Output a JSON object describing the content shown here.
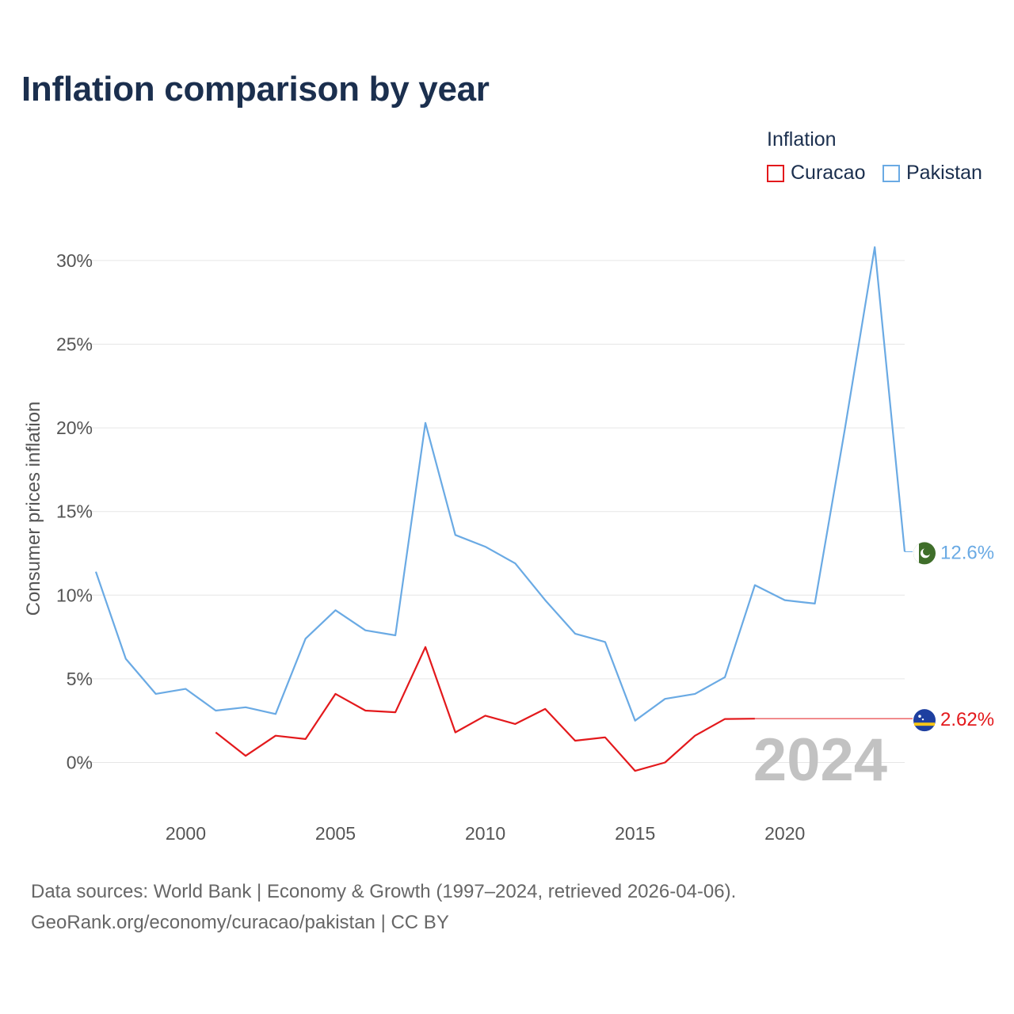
{
  "title": "Inflation comparison by year",
  "legend": {
    "title": "Inflation",
    "items": [
      {
        "label": "Curacao",
        "color": "#e3191c"
      },
      {
        "label": "Pakistan",
        "color": "#6aaae4"
      }
    ]
  },
  "source": {
    "line1": "Data sources: World Bank | Economy & Growth (1997–2024, retrieved 2026-04-06).",
    "line2": "GeoRank.org/economy/curacao/pakistan | CC BY"
  },
  "chart_data": {
    "type": "line",
    "title": "Inflation comparison by year",
    "xlabel": "",
    "ylabel": "Consumer prices inflation",
    "xlim": [
      1997,
      2024
    ],
    "ylim": [
      -2.5,
      31
    ],
    "yticks": [
      0,
      5,
      10,
      15,
      20,
      25,
      30
    ],
    "ytick_labels": [
      "0%",
      "5%",
      "10%",
      "15%",
      "20%",
      "25%",
      "30%"
    ],
    "xticks": [
      2000,
      2005,
      2010,
      2015,
      2020
    ],
    "xtick_labels": [
      "2000",
      "2005",
      "2010",
      "2015",
      "2020"
    ],
    "year_label": "2024",
    "series": [
      {
        "name": "Curacao",
        "color": "#e3191c",
        "end_label": "2.62%",
        "end_value": 2.62,
        "flag_icon": "curacao-flag-icon",
        "points": [
          [
            2001,
            1.8
          ],
          [
            2002,
            0.4
          ],
          [
            2003,
            1.6
          ],
          [
            2004,
            1.4
          ],
          [
            2005,
            4.1
          ],
          [
            2006,
            3.1
          ],
          [
            2007,
            3.0
          ],
          [
            2008,
            6.9
          ],
          [
            2009,
            1.8
          ],
          [
            2010,
            2.8
          ],
          [
            2011,
            2.3
          ],
          [
            2012,
            3.2
          ],
          [
            2013,
            1.3
          ],
          [
            2014,
            1.5
          ],
          [
            2015,
            -0.5
          ],
          [
            2016,
            0.0
          ],
          [
            2017,
            1.6
          ],
          [
            2018,
            2.6
          ],
          [
            2019,
            2.62
          ]
        ]
      },
      {
        "name": "Pakistan",
        "color": "#6aaae4",
        "end_label": "12.6%",
        "end_value": 12.6,
        "flag_icon": "pakistan-flag-icon",
        "points": [
          [
            1997,
            11.4
          ],
          [
            1998,
            6.2
          ],
          [
            1999,
            4.1
          ],
          [
            2000,
            4.4
          ],
          [
            2001,
            3.1
          ],
          [
            2002,
            3.3
          ],
          [
            2003,
            2.9
          ],
          [
            2004,
            7.4
          ],
          [
            2005,
            9.1
          ],
          [
            2006,
            7.9
          ],
          [
            2007,
            7.6
          ],
          [
            2008,
            20.3
          ],
          [
            2009,
            13.6
          ],
          [
            2010,
            12.9
          ],
          [
            2011,
            11.9
          ],
          [
            2012,
            9.7
          ],
          [
            2013,
            7.7
          ],
          [
            2014,
            7.2
          ],
          [
            2015,
            2.5
          ],
          [
            2016,
            3.8
          ],
          [
            2017,
            4.1
          ],
          [
            2018,
            5.1
          ],
          [
            2019,
            10.6
          ],
          [
            2020,
            9.7
          ],
          [
            2021,
            9.5
          ],
          [
            2022,
            19.9
          ],
          [
            2023,
            30.8
          ],
          [
            2024,
            12.6
          ]
        ]
      }
    ]
  }
}
